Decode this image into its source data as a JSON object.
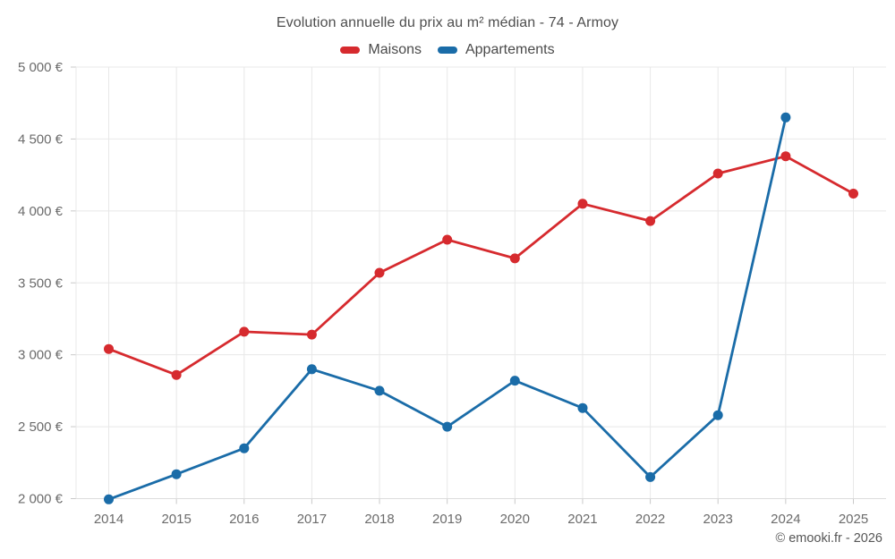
{
  "chart_data": {
    "type": "line",
    "title": "Evolution annuelle du prix au m² médian - 74 - Armoy",
    "x_labels": [
      "2014",
      "2015",
      "2016",
      "2017",
      "2018",
      "2019",
      "2020",
      "2021",
      "2022",
      "2023",
      "2024",
      "2025"
    ],
    "series": [
      {
        "name": "Maisons",
        "color": "#d62a2e",
        "values": [
          3040,
          2860,
          3160,
          3140,
          3570,
          3800,
          3670,
          4050,
          3930,
          4260,
          4380,
          4120
        ]
      },
      {
        "name": "Appartements",
        "color": "#1a6ca8",
        "values": [
          1995,
          2170,
          2350,
          2900,
          2750,
          2500,
          2820,
          2630,
          2150,
          2580,
          4650,
          null
        ]
      }
    ],
    "ylim": [
      2000,
      5000
    ],
    "ytick_values": [
      5000,
      4500,
      4000,
      3500,
      3000,
      2500,
      2000
    ],
    "ytick_labels": [
      "5 000 €",
      "4 500 €",
      "4 000 €",
      "3 500 €",
      "3 000 €",
      "2 500 €",
      "2 000 €"
    ],
    "grid": true,
    "legend_position": "top",
    "currency_suffix": " €"
  },
  "footer": {
    "credit": "© emooki.fr - 2026"
  }
}
